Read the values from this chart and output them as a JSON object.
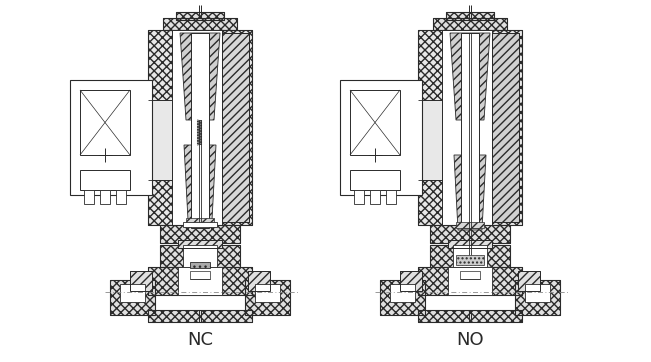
{
  "background_color": "#ffffff",
  "line_color": "#2a2a2a",
  "label_NC": "NC",
  "label_NO": "NO",
  "label_fontsize": 13,
  "fig_width": 6.51,
  "fig_height": 3.62,
  "dpi": 100
}
